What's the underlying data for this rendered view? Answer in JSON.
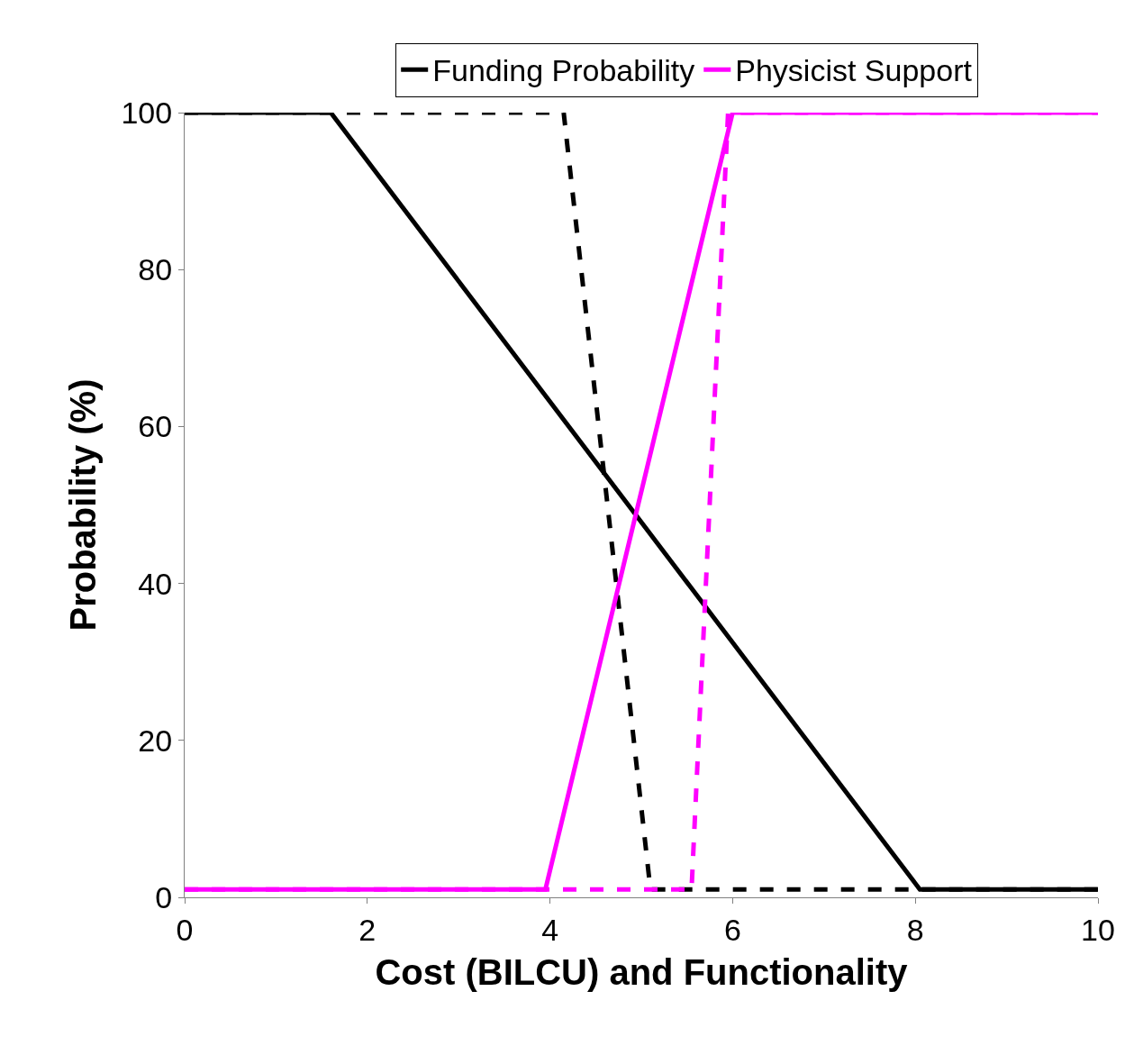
{
  "chart_data": {
    "type": "line",
    "xlabel": "Cost (BILCU) and Functionality",
    "ylabel": "Probability (%)",
    "xlim": [
      0,
      10
    ],
    "xticks": [
      0,
      2,
      4,
      6,
      8,
      10
    ],
    "ylim": [
      0,
      100
    ],
    "yticks": [
      0,
      20,
      40,
      60,
      80,
      100
    ],
    "legend": "top",
    "marker": "none",
    "series": [
      {
        "name": "Funding Probability",
        "color": "#000000",
        "line_style": "solid",
        "x": [
          0,
          1.6,
          8.05,
          10
        ],
        "values": [
          100,
          100,
          1,
          1
        ]
      },
      {
        "color": "#000000",
        "line_style": "dashed",
        "x": [
          0,
          4.15,
          5.1,
          10
        ],
        "values": [
          100,
          100,
          1,
          1
        ]
      },
      {
        "name": "Physicist Support",
        "color": "#ff00ff",
        "line_style": "solid",
        "x": [
          0,
          3.95,
          6.0,
          10
        ],
        "values": [
          1,
          1,
          100,
          100
        ]
      },
      {
        "color": "#ff00ff",
        "line_style": "dashed",
        "x": [
          0,
          5.55,
          5.95,
          10
        ],
        "values": [
          1,
          1,
          100,
          100
        ]
      }
    ]
  }
}
